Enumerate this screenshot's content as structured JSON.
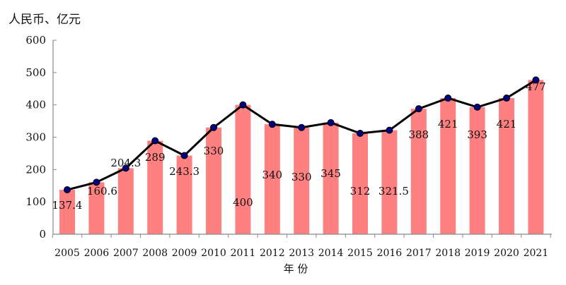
{
  "chart_data": {
    "type": "bar+line",
    "ylabel": "人民币、亿元",
    "xlabel": "年 份",
    "ylim": [
      0,
      600
    ],
    "yticks": [
      0,
      100,
      200,
      300,
      400,
      500,
      600
    ],
    "categories": [
      "2005",
      "2006",
      "2007",
      "2008",
      "2009",
      "2010",
      "2011",
      "2012",
      "2013",
      "2014",
      "2015",
      "2016",
      "2017",
      "2018",
      "2019",
      "2020",
      "2021"
    ],
    "values": [
      137.4,
      160.6,
      204.3,
      289,
      243.3,
      330,
      400,
      340,
      330,
      345,
      312,
      321.5,
      388,
      421,
      393,
      421,
      477
    ],
    "value_labels": [
      "137.4",
      "160.6",
      "204.3",
      "289",
      "243.3",
      "330",
      "400",
      "340",
      "330",
      "345",
      "312",
      "321.5",
      "388",
      "421",
      "393",
      "421",
      "477"
    ],
    "grid": false,
    "legend": "none",
    "colors": {
      "bar": "#ff8080",
      "line": "#000000",
      "marker": "#000080"
    }
  }
}
